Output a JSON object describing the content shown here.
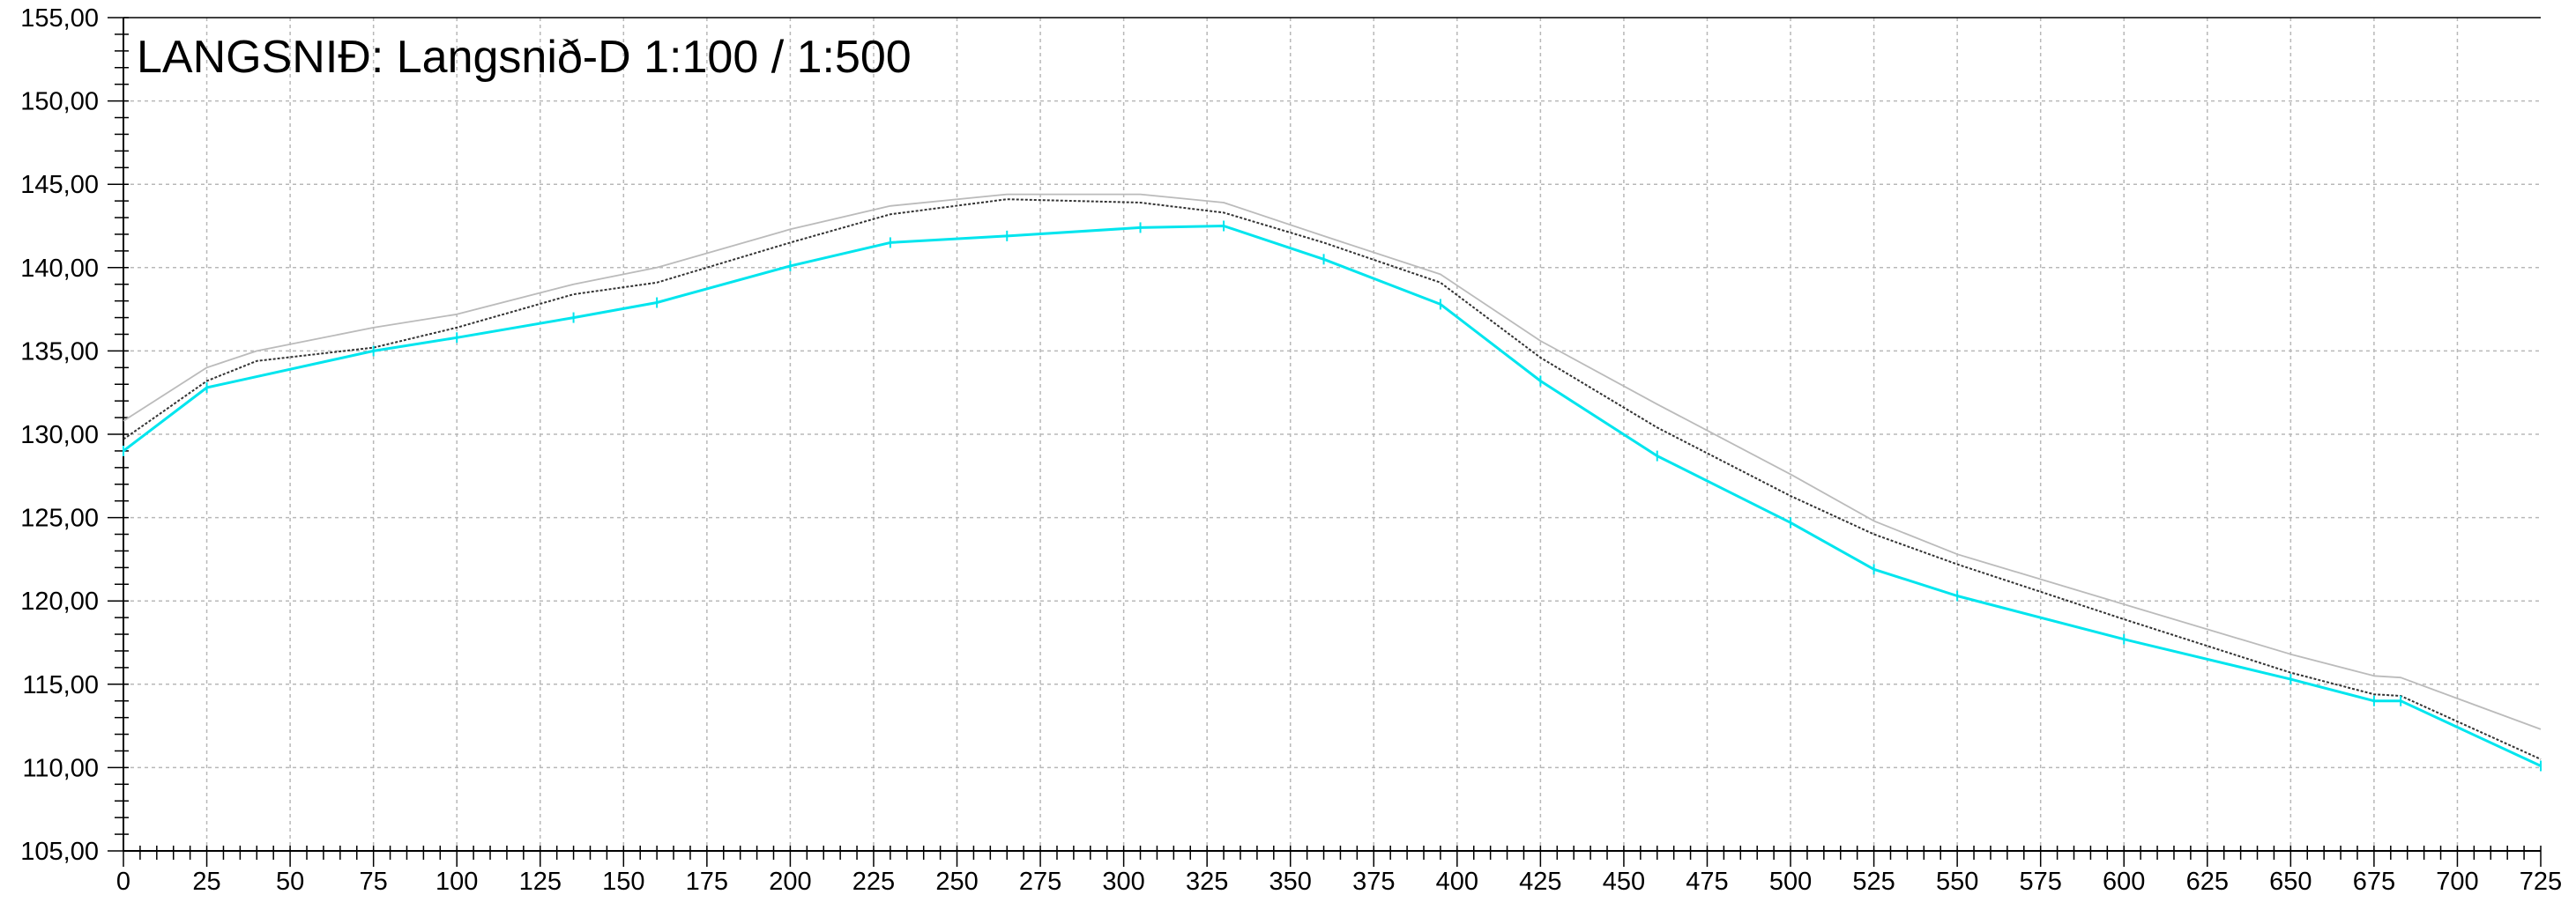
{
  "chart_data": {
    "type": "line",
    "title": "LANGSNIÐ: Langsnið-D 1:100 / 1:500",
    "xlabel": "",
    "ylabel": "",
    "xlim": [
      0,
      725
    ],
    "ylim": [
      105,
      155
    ],
    "x_ticks": [
      "0",
      "25",
      "50",
      "75",
      "100",
      "125",
      "150",
      "175",
      "200",
      "225",
      "250",
      "275",
      "300",
      "325",
      "350",
      "375",
      "400",
      "425",
      "450",
      "475",
      "500",
      "525",
      "550",
      "575",
      "600",
      "625",
      "650",
      "675",
      "700",
      "725"
    ],
    "y_ticks": [
      "105,00",
      "110,00",
      "115,00",
      "120,00",
      "125,00",
      "130,00",
      "135,00",
      "140,00",
      "145,00",
      "150,00",
      "155,00"
    ],
    "grid": true,
    "legend": "none",
    "series": [
      {
        "color": "#bbbbbb",
        "style": "solid-thin",
        "points": [
          [
            0,
            130.8
          ],
          [
            25,
            134.0
          ],
          [
            40,
            135.0
          ],
          [
            75,
            136.4
          ],
          [
            100,
            137.2
          ],
          [
            135,
            139.0
          ],
          [
            160,
            140.0
          ],
          [
            200,
            142.3
          ],
          [
            230,
            143.7
          ],
          [
            265,
            144.4
          ],
          [
            305,
            144.4
          ],
          [
            330,
            143.9
          ],
          [
            360,
            141.9
          ],
          [
            395,
            139.6
          ],
          [
            425,
            135.6
          ],
          [
            460,
            131.8
          ],
          [
            500,
            127.6
          ],
          [
            525,
            124.8
          ],
          [
            550,
            122.8
          ],
          [
            600,
            119.8
          ],
          [
            650,
            116.8
          ],
          [
            675,
            115.5
          ],
          [
            683,
            115.4
          ],
          [
            725,
            112.3
          ]
        ]
      },
      {
        "color": "#333333",
        "style": "dotted",
        "points": [
          [
            0,
            129.7
          ],
          [
            25,
            133.2
          ],
          [
            40,
            134.4
          ],
          [
            75,
            135.2
          ],
          [
            100,
            136.4
          ],
          [
            135,
            138.4
          ],
          [
            160,
            139.1
          ],
          [
            200,
            141.5
          ],
          [
            230,
            143.2
          ],
          [
            265,
            144.1
          ],
          [
            305,
            143.9
          ],
          [
            330,
            143.3
          ],
          [
            360,
            141.5
          ],
          [
            395,
            139.1
          ],
          [
            425,
            134.6
          ],
          [
            460,
            130.4
          ],
          [
            500,
            126.3
          ],
          [
            525,
            124.0
          ],
          [
            550,
            122.2
          ],
          [
            600,
            118.9
          ],
          [
            650,
            115.7
          ],
          [
            675,
            114.4
          ],
          [
            683,
            114.3
          ],
          [
            725,
            110.5
          ]
        ]
      },
      {
        "color": "#00e5ee",
        "style": "solid",
        "points": [
          [
            0,
            129.0
          ],
          [
            25,
            132.8
          ],
          [
            75,
            135.0
          ],
          [
            100,
            135.8
          ],
          [
            135,
            137.0
          ],
          [
            160,
            137.9
          ],
          [
            200,
            140.1
          ],
          [
            230,
            141.5
          ],
          [
            265,
            141.9
          ],
          [
            305,
            142.4
          ],
          [
            330,
            142.5
          ],
          [
            360,
            140.5
          ],
          [
            395,
            137.8
          ],
          [
            425,
            133.2
          ],
          [
            460,
            128.7
          ],
          [
            500,
            124.7
          ],
          [
            525,
            121.9
          ],
          [
            550,
            120.3
          ],
          [
            600,
            117.7
          ],
          [
            650,
            115.3
          ],
          [
            675,
            114.0
          ],
          [
            683,
            114.0
          ],
          [
            725,
            110.1
          ]
        ]
      }
    ]
  }
}
